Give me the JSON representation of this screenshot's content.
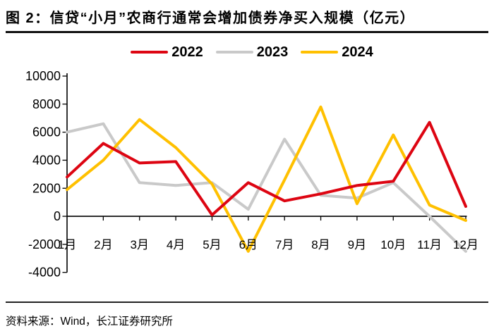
{
  "title": "图 2：信贷“小月”农商行通常会增加债券净买入规模（亿元）",
  "source": "资料来源：Wind，长江证券研究所",
  "chart_data": {
    "type": "line",
    "title": "图 2：信贷“小月”农商行通常会增加债券净买入规模（亿元）",
    "categories": [
      "1月",
      "2月",
      "3月",
      "4月",
      "5月",
      "6月",
      "7月",
      "8月",
      "9月",
      "10月",
      "11月",
      "12月"
    ],
    "series": [
      {
        "name": "2022",
        "color": "#DD0512",
        "values": [
          2800,
          5200,
          3800,
          3900,
          100,
          2400,
          1100,
          1600,
          2200,
          2500,
          6700,
          700
        ]
      },
      {
        "name": "2023",
        "color": "#C9C9C9",
        "values": [
          6000,
          6600,
          2400,
          2200,
          2400,
          500,
          5500,
          1500,
          1300,
          2400,
          0,
          -2500
        ]
      },
      {
        "name": "2024",
        "color": "#FFC000",
        "values": [
          1900,
          4000,
          6900,
          4900,
          2300,
          -2500,
          2600,
          7800,
          900,
          5800,
          800,
          -300
        ]
      }
    ],
    "xlabel": "",
    "ylabel": "",
    "ylim": [
      -4000,
      10000
    ],
    "ytick_step": 2000,
    "grid": false,
    "legend_position": "top"
  }
}
